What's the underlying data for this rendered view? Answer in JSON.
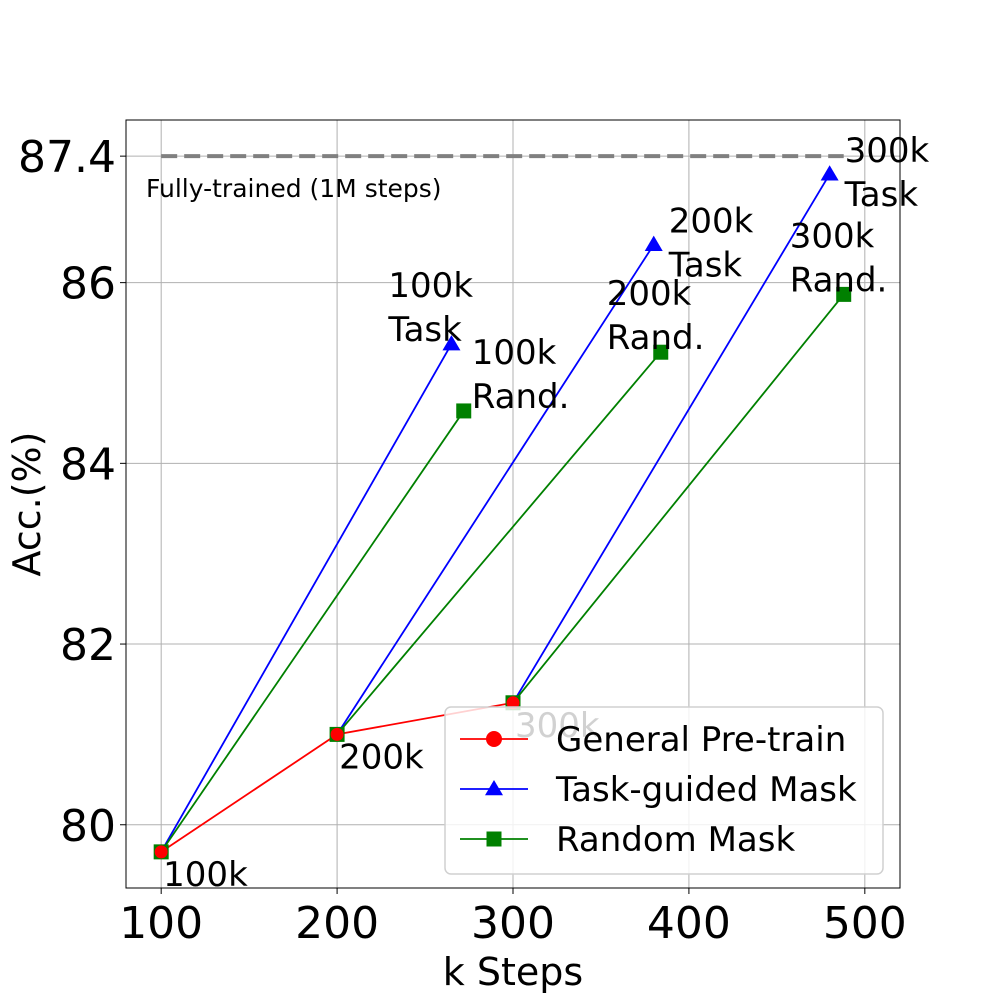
{
  "chart_data": {
    "type": "line",
    "xlabel": "k Steps",
    "ylabel": "Acc.(%)",
    "xlim": [
      80,
      520
    ],
    "ylim": [
      79.3,
      87.8
    ],
    "xticks": [
      "100",
      "200",
      "300",
      "400",
      "500"
    ],
    "yticks": [
      "80",
      "82",
      "84",
      "86",
      "87.4"
    ],
    "grid": true,
    "legend_position": "lower-right",
    "reference_line": {
      "y": 87.4,
      "label": "Fully-trained (1M steps)",
      "color": "#808080",
      "style": "dashed"
    },
    "series": [
      {
        "name": "General Pre-train",
        "color": "#ff0000",
        "marker": "circle",
        "points": [
          {
            "x": 100,
            "y": 79.7,
            "label": "100k"
          },
          {
            "x": 200,
            "y": 81.0,
            "label": "200k"
          },
          {
            "x": 300,
            "y": 81.35,
            "label": "300k"
          }
        ]
      },
      {
        "name": "Task-guided Mask",
        "color": "#0000ff",
        "marker": "triangle",
        "segments": [
          [
            {
              "x": 100,
              "y": 79.7
            },
            {
              "x": 265,
              "y": 85.32,
              "label": "100k Task"
            }
          ],
          [
            {
              "x": 200,
              "y": 81.0
            },
            {
              "x": 380,
              "y": 86.42,
              "label": "200k Task"
            }
          ],
          [
            {
              "x": 300,
              "y": 81.35
            },
            {
              "x": 480,
              "y": 87.2,
              "label": "300k Task"
            }
          ]
        ]
      },
      {
        "name": "Random Mask",
        "color": "#008000",
        "marker": "square",
        "segments": [
          [
            {
              "x": 100,
              "y": 79.7
            },
            {
              "x": 272,
              "y": 84.58,
              "label": "100k Rand."
            }
          ],
          [
            {
              "x": 200,
              "y": 81.0
            },
            {
              "x": 384,
              "y": 85.23,
              "label": "200k Rand."
            }
          ],
          [
            {
              "x": 300,
              "y": 81.35
            },
            {
              "x": 488,
              "y": 85.87,
              "label": "300k Rand."
            }
          ]
        ]
      }
    ]
  }
}
